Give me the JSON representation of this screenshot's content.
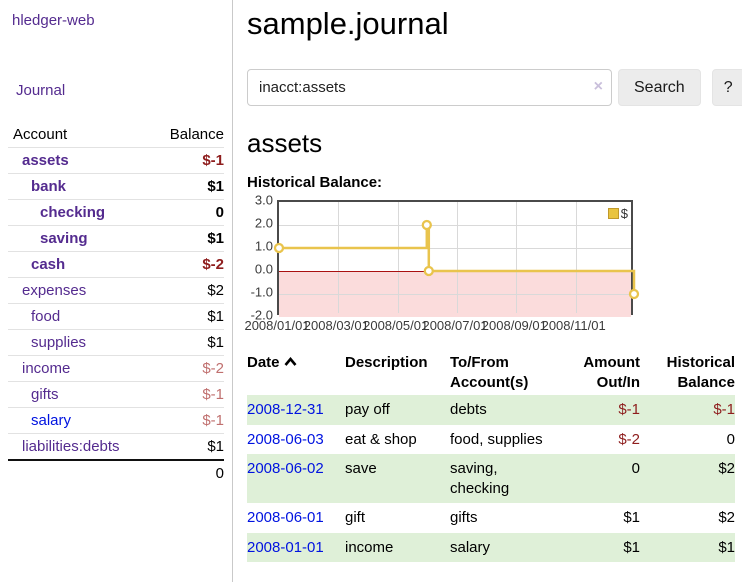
{
  "app": {
    "brand": "hledger-web",
    "nav_journal": "Journal"
  },
  "sidebar": {
    "col_account": "Account",
    "col_balance": "Balance",
    "accounts": [
      {
        "label": "assets",
        "indent": 0,
        "bold": true,
        "balance": "$-1",
        "balance_class": "neg-strong"
      },
      {
        "label": "bank",
        "indent": 1,
        "bold": true,
        "balance": "$1",
        "balance_class": "pos"
      },
      {
        "label": "checking",
        "indent": 2,
        "bold": true,
        "balance": "0",
        "balance_class": "pos"
      },
      {
        "label": "saving",
        "indent": 2,
        "bold": true,
        "balance": "$1",
        "balance_class": "pos"
      },
      {
        "label": "cash",
        "indent": 1,
        "bold": true,
        "balance": "$-2",
        "balance_class": "neg-strong"
      },
      {
        "label": "expenses",
        "indent": 0,
        "bold": false,
        "balance": "$2",
        "balance_class": "pos"
      },
      {
        "label": "food",
        "indent": 1,
        "bold": false,
        "balance": "$1",
        "balance_class": "pos"
      },
      {
        "label": "supplies",
        "indent": 1,
        "bold": false,
        "balance": "$1",
        "balance_class": "pos"
      },
      {
        "label": "income",
        "indent": 0,
        "bold": false,
        "balance": "$-2",
        "balance_class": "neg-soft"
      },
      {
        "label": "gifts",
        "indent": 1,
        "bold": false,
        "balance": "$-1",
        "balance_class": "neg-soft"
      },
      {
        "label": "salary",
        "indent": 1,
        "bold": false,
        "balance": "$-1",
        "balance_class": "neg-soft",
        "link_style": "blue"
      },
      {
        "label": "liabilities:debts",
        "indent": 0,
        "bold": false,
        "balance": "$1",
        "balance_class": "pos",
        "last": true
      }
    ],
    "total": "0"
  },
  "header": {
    "title": "sample.journal"
  },
  "search": {
    "value": "inacct:assets",
    "clear_icon": "×",
    "button": "Search",
    "help_button": "?"
  },
  "account_page": {
    "heading": "assets",
    "chart_label": "Historical Balance:"
  },
  "chart_data": {
    "type": "line",
    "step": true,
    "title": "Historical Balance:",
    "legend": "$",
    "legend_position": "top-right",
    "x_range": [
      "2008-01-01",
      "2009-01-01"
    ],
    "x_ticks": [
      "2008/01/01",
      "2008/03/01",
      "2008/05/01",
      "2008/07/01",
      "2008/09/01",
      "2008/11/01"
    ],
    "y_ticks": [
      3.0,
      2.0,
      1.0,
      0.0,
      -1.0,
      -2.0
    ],
    "ylim": [
      -2,
      3
    ],
    "series": [
      {
        "name": "$",
        "points": [
          {
            "x": "2008-01-01",
            "y": 1
          },
          {
            "x": "2008-06-01",
            "y": 2
          },
          {
            "x": "2008-06-03",
            "y": 0
          },
          {
            "x": "2008-12-31",
            "y": -1
          }
        ]
      }
    ],
    "line_color": "#e9c44d",
    "marker_fill": "#ffffff",
    "zero_line_color": "#aa1111",
    "negative_region_color": "#fbdcdc",
    "grid_color": "#d9d9d9"
  },
  "register_table": {
    "headers": {
      "date": "Date",
      "description": "Description",
      "tofrom": "To/From Account(s)",
      "amount": "Amount Out/In",
      "historical": "Historical Balance"
    },
    "rows": [
      {
        "date": "2008-12-31",
        "description": "pay off",
        "accounts": "debts",
        "amount": "$-1",
        "historical": "$-1"
      },
      {
        "date": "2008-06-03",
        "description": "eat & shop",
        "accounts": "food, supplies",
        "amount": "$-2",
        "historical": "0"
      },
      {
        "date": "2008-06-02",
        "description": "save",
        "accounts": "saving, checking",
        "amount": "0",
        "historical": "$2"
      },
      {
        "date": "2008-06-01",
        "description": "gift",
        "accounts": "gifts",
        "amount": "$1",
        "historical": "$2"
      },
      {
        "date": "2008-01-01",
        "description": "income",
        "accounts": "salary",
        "amount": "$1",
        "historical": "$1"
      }
    ]
  },
  "colors": {
    "link_purple": "#542b8f",
    "link_blue": "#0013e0",
    "negative_strong": "#8e1d1d",
    "negative_soft": "#c0706f",
    "row_stripe_green": "#dff0d8",
    "chart_line_gold": "#e9c44d",
    "chart_negative_pink": "#fbdcdc",
    "chart_zero_red": "#aa1111"
  }
}
